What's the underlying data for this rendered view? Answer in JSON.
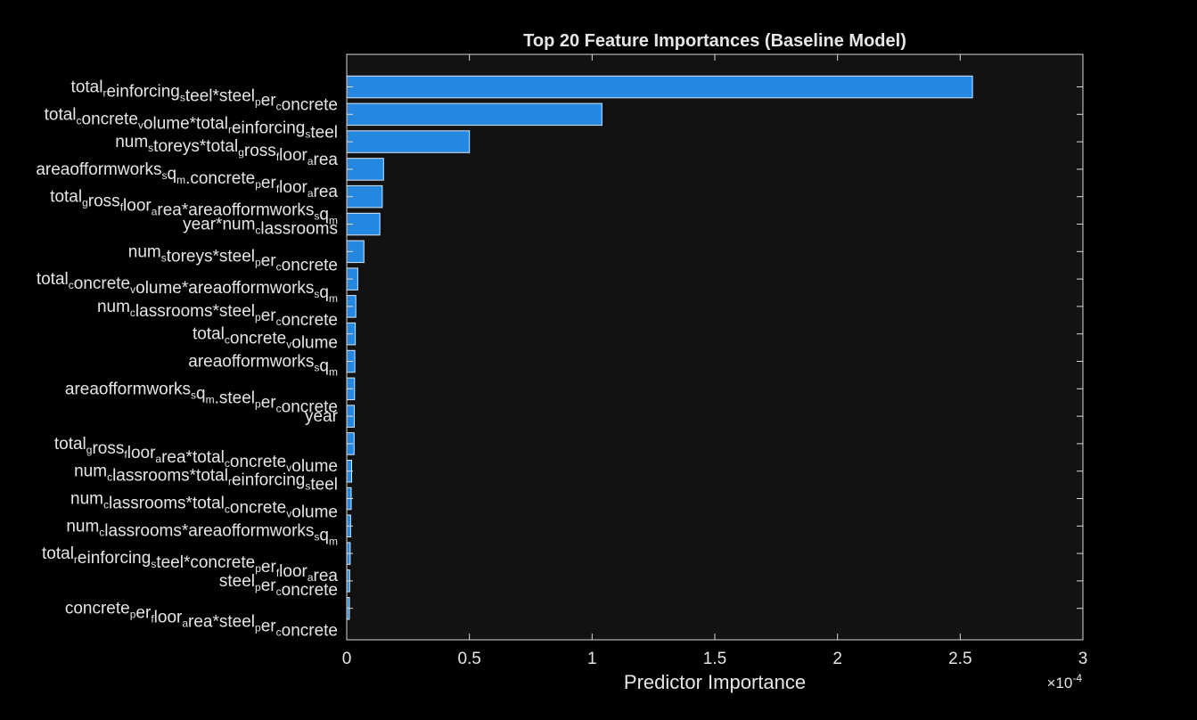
{
  "chart_data": {
    "type": "bar",
    "orientation": "horizontal",
    "title": "Top 20 Feature Importances (Baseline Model)",
    "xlabel": "Predictor Importance",
    "ylabel": "",
    "x_exponent_label": "×10",
    "x_exponent_power": "-4",
    "xlim": [
      0,
      3
    ],
    "xticks": [
      "0",
      "0.5",
      "1",
      "1.5",
      "2",
      "2.5",
      "3"
    ],
    "grid": false,
    "bar_color": "#2487e0",
    "bar_edge_color": "#d6e6f5",
    "axes_background": "#121212",
    "figure_background": "#000000",
    "categories": [
      [
        {
          "t": "total"
        },
        {
          "t": "r",
          "s": "sub"
        },
        {
          "t": "einforcing"
        },
        {
          "t": "s",
          "s": "sub"
        },
        {
          "t": "teel*steel"
        },
        {
          "t": "p",
          "s": "sub"
        },
        {
          "t": "er"
        },
        {
          "t": "c",
          "s": "sub"
        },
        {
          "t": "oncrete"
        }
      ],
      [
        {
          "t": "total"
        },
        {
          "t": "c",
          "s": "sub"
        },
        {
          "t": "oncrete"
        },
        {
          "t": "v",
          "s": "sub"
        },
        {
          "t": "olume*total"
        },
        {
          "t": "r",
          "s": "sub"
        },
        {
          "t": "einforcing"
        },
        {
          "t": "s",
          "s": "sub"
        },
        {
          "t": "teel"
        }
      ],
      [
        {
          "t": "num"
        },
        {
          "t": "s",
          "s": "sub"
        },
        {
          "t": "toreys*total"
        },
        {
          "t": "g",
          "s": "sub"
        },
        {
          "t": "ross"
        },
        {
          "t": "f",
          "s": "sub"
        },
        {
          "t": "loor"
        },
        {
          "t": "a",
          "s": "sub"
        },
        {
          "t": "rea"
        }
      ],
      [
        {
          "t": "areaofformworks"
        },
        {
          "t": "s",
          "s": "sub"
        },
        {
          "t": "q"
        },
        {
          "t": "m",
          "s": "sub"
        },
        {
          "t": ".concrete"
        },
        {
          "t": "p",
          "s": "sub"
        },
        {
          "t": "er"
        },
        {
          "t": "f",
          "s": "sub"
        },
        {
          "t": "loor"
        },
        {
          "t": "a",
          "s": "sub"
        },
        {
          "t": "rea"
        }
      ],
      [
        {
          "t": "total"
        },
        {
          "t": "g",
          "s": "sub"
        },
        {
          "t": "ross"
        },
        {
          "t": "f",
          "s": "sub"
        },
        {
          "t": "loor"
        },
        {
          "t": "a",
          "s": "sub"
        },
        {
          "t": "rea*areaofformworks"
        },
        {
          "t": "s",
          "s": "sub"
        },
        {
          "t": "q"
        },
        {
          "t": "m",
          "s": "sub"
        }
      ],
      [
        {
          "t": "year*num"
        },
        {
          "t": "c",
          "s": "sub"
        },
        {
          "t": "lassrooms"
        }
      ],
      [
        {
          "t": "num"
        },
        {
          "t": "s",
          "s": "sub"
        },
        {
          "t": "toreys*steel"
        },
        {
          "t": "p",
          "s": "sub"
        },
        {
          "t": "er"
        },
        {
          "t": "c",
          "s": "sub"
        },
        {
          "t": "oncrete"
        }
      ],
      [
        {
          "t": "total"
        },
        {
          "t": "c",
          "s": "sub"
        },
        {
          "t": "oncrete"
        },
        {
          "t": "v",
          "s": "sub"
        },
        {
          "t": "olume*areaofformworks"
        },
        {
          "t": "s",
          "s": "sub"
        },
        {
          "t": "q"
        },
        {
          "t": "m",
          "s": "sub"
        }
      ],
      [
        {
          "t": "num"
        },
        {
          "t": "c",
          "s": "sub"
        },
        {
          "t": "lassrooms*steel"
        },
        {
          "t": "p",
          "s": "sub"
        },
        {
          "t": "er"
        },
        {
          "t": "c",
          "s": "sub"
        },
        {
          "t": "oncrete"
        }
      ],
      [
        {
          "t": "total"
        },
        {
          "t": "c",
          "s": "sub"
        },
        {
          "t": "oncrete"
        },
        {
          "t": "v",
          "s": "sub"
        },
        {
          "t": "olume"
        }
      ],
      [
        {
          "t": "areaofformworks"
        },
        {
          "t": "s",
          "s": "sub"
        },
        {
          "t": "q"
        },
        {
          "t": "m",
          "s": "sub"
        }
      ],
      [
        {
          "t": "areaofformworks"
        },
        {
          "t": "s",
          "s": "sub"
        },
        {
          "t": "q"
        },
        {
          "t": "m",
          "s": "sub"
        },
        {
          "t": ".steel"
        },
        {
          "t": "p",
          "s": "sub"
        },
        {
          "t": "er"
        },
        {
          "t": "c",
          "s": "sub"
        },
        {
          "t": "oncrete"
        }
      ],
      [
        {
          "t": "year"
        }
      ],
      [
        {
          "t": "total"
        },
        {
          "t": "g",
          "s": "sub"
        },
        {
          "t": "ross"
        },
        {
          "t": "f",
          "s": "sub"
        },
        {
          "t": "loor"
        },
        {
          "t": "a",
          "s": "sub"
        },
        {
          "t": "rea*total"
        },
        {
          "t": "c",
          "s": "sub"
        },
        {
          "t": "oncrete"
        },
        {
          "t": "v",
          "s": "sub"
        },
        {
          "t": "olume"
        }
      ],
      [
        {
          "t": "num"
        },
        {
          "t": "c",
          "s": "sub"
        },
        {
          "t": "lassrooms*total"
        },
        {
          "t": "r",
          "s": "sub"
        },
        {
          "t": "einforcing"
        },
        {
          "t": "s",
          "s": "sub"
        },
        {
          "t": "teel"
        }
      ],
      [
        {
          "t": "num"
        },
        {
          "t": "c",
          "s": "sub"
        },
        {
          "t": "lassrooms*total"
        },
        {
          "t": "c",
          "s": "sub"
        },
        {
          "t": "oncrete"
        },
        {
          "t": "v",
          "s": "sub"
        },
        {
          "t": "olume"
        }
      ],
      [
        {
          "t": "num"
        },
        {
          "t": "c",
          "s": "sub"
        },
        {
          "t": "lassrooms*areaofformworks"
        },
        {
          "t": "s",
          "s": "sub"
        },
        {
          "t": "q"
        },
        {
          "t": "m",
          "s": "sub"
        }
      ],
      [
        {
          "t": "total"
        },
        {
          "t": "r",
          "s": "sub"
        },
        {
          "t": "einforcing"
        },
        {
          "t": "s",
          "s": "sub"
        },
        {
          "t": "teel*concrete"
        },
        {
          "t": "p",
          "s": "sub"
        },
        {
          "t": "er"
        },
        {
          "t": "f",
          "s": "sub"
        },
        {
          "t": "loor"
        },
        {
          "t": "a",
          "s": "sub"
        },
        {
          "t": "rea"
        }
      ],
      [
        {
          "t": "steel"
        },
        {
          "t": "p",
          "s": "sub"
        },
        {
          "t": "er"
        },
        {
          "t": "c",
          "s": "sub"
        },
        {
          "t": "oncrete"
        }
      ],
      [
        {
          "t": "concrete"
        },
        {
          "t": "p",
          "s": "sub"
        },
        {
          "t": "er"
        },
        {
          "t": "f",
          "s": "sub"
        },
        {
          "t": "loor"
        },
        {
          "t": "a",
          "s": "sub"
        },
        {
          "t": "rea*steel"
        },
        {
          "t": "p",
          "s": "sub"
        },
        {
          "t": "er"
        },
        {
          "t": "c",
          "s": "sub"
        },
        {
          "t": "oncrete"
        }
      ]
    ],
    "values": [
      2.55,
      1.04,
      0.5,
      0.15,
      0.145,
      0.135,
      0.07,
      0.045,
      0.037,
      0.035,
      0.033,
      0.032,
      0.031,
      0.03,
      0.02,
      0.018,
      0.016,
      0.014,
      0.012,
      0.011
    ]
  }
}
